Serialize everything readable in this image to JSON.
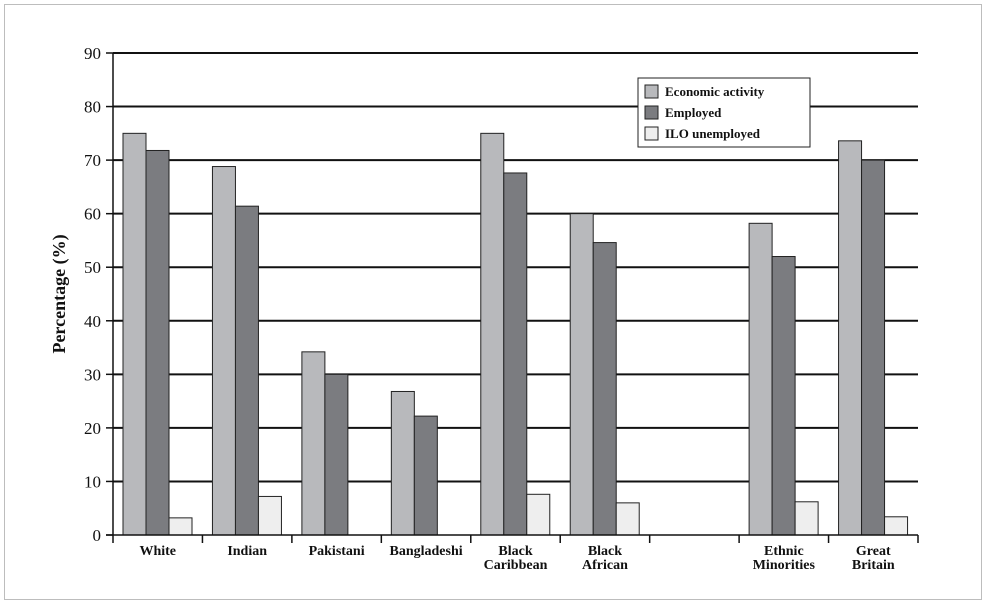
{
  "chart_data": {
    "type": "bar",
    "title": "",
    "xlabel": "",
    "ylabel": "Percentage (%)",
    "ylim": [
      0,
      90
    ],
    "yticks": [
      0,
      10,
      20,
      30,
      40,
      50,
      60,
      70,
      80,
      90
    ],
    "grid": true,
    "legend_position": "top-right",
    "categories": [
      [
        "White"
      ],
      [
        "Indian"
      ],
      [
        "Pakistani"
      ],
      [
        "Bangladeshi"
      ],
      [
        "Black",
        "Caribbean"
      ],
      [
        "Black",
        "African"
      ],
      [
        ""
      ],
      [
        "Ethnic",
        "Minorities"
      ],
      [
        "Great",
        "Britain"
      ]
    ],
    "series": [
      {
        "name": "Economic activity",
        "color": "#b8b9bc",
        "values": [
          75,
          68.8,
          34.2,
          26.8,
          75,
          60,
          null,
          58.2,
          73.6
        ]
      },
      {
        "name": "Employed",
        "color": "#7b7c80",
        "values": [
          71.8,
          61.4,
          30,
          22.2,
          67.6,
          54.6,
          null,
          52,
          70
        ]
      },
      {
        "name": "ILO unemployed",
        "color": "#eeeeee",
        "values": [
          3.2,
          7.2,
          null,
          null,
          7.6,
          6,
          null,
          6.2,
          3.4
        ]
      }
    ]
  }
}
